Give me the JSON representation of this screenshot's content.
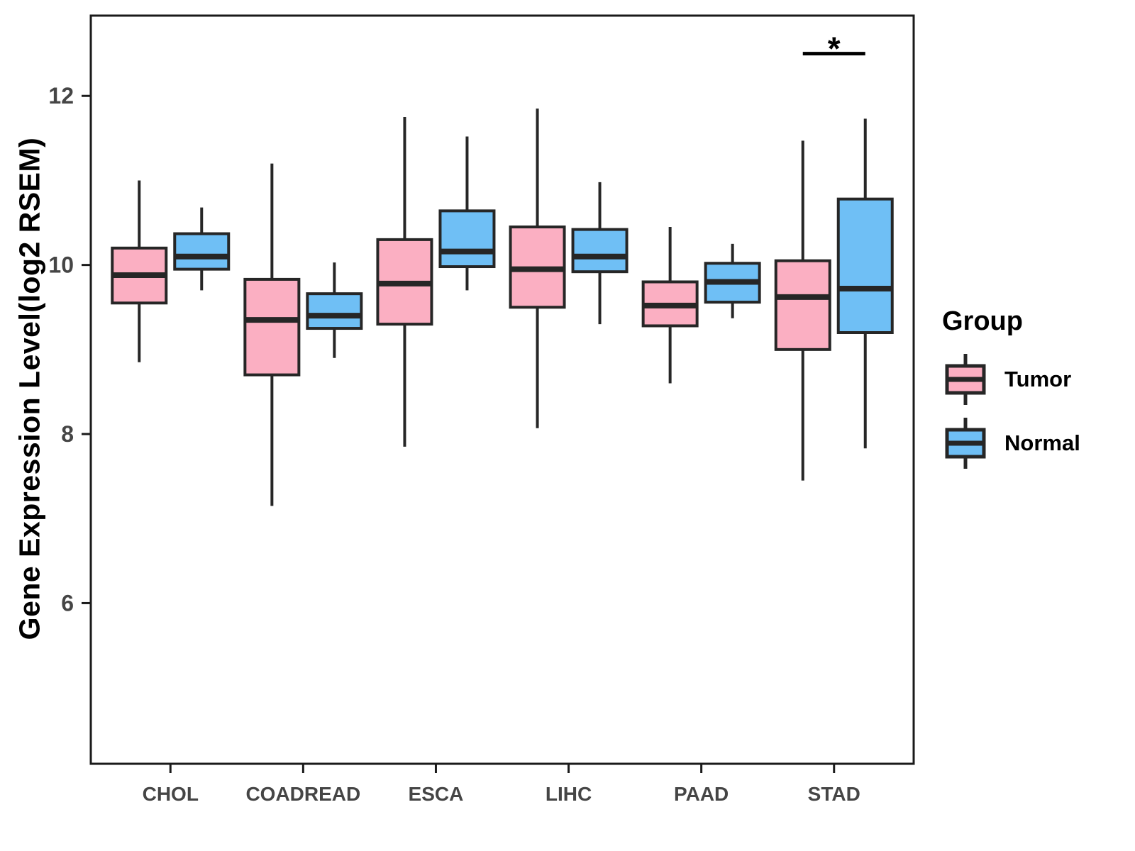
{
  "figure": {
    "background": "#ffffff",
    "panel_border_color": "#1a1a1a",
    "box_outline_color": "#262626",
    "tick_label_color": "#454545"
  },
  "y_axis": {
    "title": "Gene Expression Level(log2 RSEM)",
    "ticks": [
      6,
      8,
      10,
      12
    ],
    "range": [
      4.1,
      12.95
    ]
  },
  "x_axis": {
    "categories": [
      "CHOL",
      "COADREAD",
      "ESCA",
      "LIHC",
      "PAAD",
      "STAD"
    ]
  },
  "legend": {
    "title": "Group",
    "items": [
      {
        "label": "Tumor",
        "color": "#FBAFC2"
      },
      {
        "label": "Normal",
        "color": "#6FBFF5"
      }
    ]
  },
  "chart_data": {
    "type": "box",
    "title": "",
    "xlabel": "",
    "ylabel": "Gene Expression Level(log2 RSEM)",
    "ylim": [
      4.1,
      12.95
    ],
    "grid": false,
    "legend_position": "right",
    "categories": [
      "CHOL",
      "COADREAD",
      "ESCA",
      "LIHC",
      "PAAD",
      "STAD"
    ],
    "series": [
      {
        "name": "Tumor",
        "color": "#FBAFC2",
        "boxes": [
          {
            "category": "CHOL",
            "min": 8.85,
            "q1": 9.55,
            "median": 9.88,
            "q3": 10.2,
            "max": 11.0
          },
          {
            "category": "COADREAD",
            "min": 7.15,
            "q1": 8.7,
            "median": 9.35,
            "q3": 9.83,
            "max": 11.2
          },
          {
            "category": "ESCA",
            "min": 7.85,
            "q1": 9.3,
            "median": 9.78,
            "q3": 10.3,
            "max": 11.75
          },
          {
            "category": "LIHC",
            "min": 8.07,
            "q1": 9.5,
            "median": 9.95,
            "q3": 10.45,
            "max": 11.85
          },
          {
            "category": "PAAD",
            "min": 8.6,
            "q1": 9.28,
            "median": 9.52,
            "q3": 9.8,
            "max": 10.45
          },
          {
            "category": "STAD",
            "min": 7.45,
            "q1": 9.0,
            "median": 9.62,
            "q3": 10.05,
            "max": 11.47
          }
        ]
      },
      {
        "name": "Normal",
        "color": "#6FBFF5",
        "boxes": [
          {
            "category": "CHOL",
            "min": 9.7,
            "q1": 9.95,
            "median": 10.1,
            "q3": 10.37,
            "max": 10.68
          },
          {
            "category": "COADREAD",
            "min": 8.9,
            "q1": 9.25,
            "median": 9.4,
            "q3": 9.66,
            "max": 10.03
          },
          {
            "category": "ESCA",
            "min": 9.7,
            "q1": 9.98,
            "median": 10.16,
            "q3": 10.64,
            "max": 11.52
          },
          {
            "category": "LIHC",
            "min": 9.3,
            "q1": 9.92,
            "median": 10.1,
            "q3": 10.42,
            "max": 10.98
          },
          {
            "category": "PAAD",
            "min": 9.37,
            "q1": 9.56,
            "median": 9.8,
            "q3": 10.02,
            "max": 10.25
          },
          {
            "category": "STAD",
            "min": 7.83,
            "q1": 9.2,
            "median": 9.72,
            "q3": 10.78,
            "max": 11.73
          }
        ]
      }
    ],
    "annotations": [
      {
        "type": "significance",
        "label": "*",
        "category": "STAD",
        "between": [
          "Tumor",
          "Normal"
        ],
        "y": 12.5
      }
    ]
  }
}
